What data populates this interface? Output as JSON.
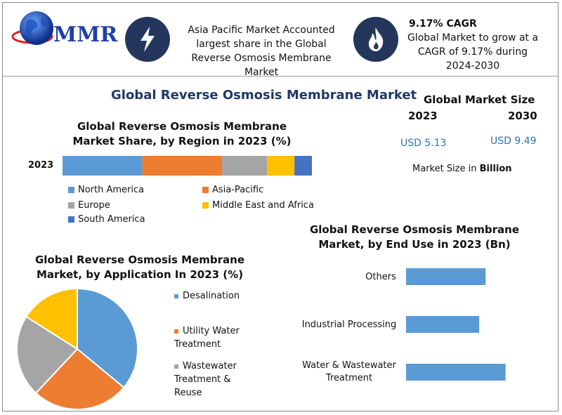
{
  "logo": {
    "text": "MMR"
  },
  "header": {
    "left_text": "Asia Pacific Market Accounted largest share in the Global Reverse Osmosis Membrane Market",
    "right_title": "9.17% CAGR",
    "right_text": "Global Market to grow at a CAGR of 9.17% during 2024-2030",
    "icons": [
      "lightning-icon",
      "flame-icon"
    ]
  },
  "main_title": "Global Reverse Osmosis Membrane Market",
  "market_size": {
    "title": "Global Market Size",
    "year1": "2023",
    "year2": "2030",
    "value1": "USD 5.13",
    "value2": "USD 9.49",
    "unit_prefix": "Market Size in ",
    "unit_bold": "Billion"
  },
  "colors": {
    "north_america": "#5b9bd5",
    "asia_pacific": "#ed7d31",
    "europe": "#a5a5a5",
    "middle_east_africa": "#ffc000",
    "south_america": "#4472c4",
    "navy": "#25365c"
  },
  "chart_data": [
    {
      "type": "bar",
      "orientation": "horizontal-stacked",
      "title": "Global Reverse Osmosis Membrane Market Share, by Region in 2023 (%)",
      "categories": [
        "2023"
      ],
      "series": [
        {
          "name": "North America",
          "values": [
            32
          ]
        },
        {
          "name": "Asia-Pacific",
          "values": [
            32
          ]
        },
        {
          "name": "Europe",
          "values": [
            18
          ]
        },
        {
          "name": "Middle East and Africa",
          "values": [
            11
          ]
        },
        {
          "name": "South America",
          "values": [
            7
          ]
        }
      ],
      "legend": "bottom"
    },
    {
      "type": "pie",
      "title": "Global Reverse Osmosis Membrane Market, by Application In 2023 (%)",
      "labels": [
        "Desalination",
        "Utility Water Treatment",
        "Wastewater Treatment & Reuse",
        ""
      ],
      "values": [
        36,
        26,
        22,
        16
      ],
      "legend": "right"
    },
    {
      "type": "bar",
      "orientation": "horizontal",
      "title": "Global Reverse Osmosis Membrane Market, by End Use in 2023 (Bn)",
      "categories": [
        "Others",
        "Industrial Processing",
        "Water & Wastewater Treatment"
      ],
      "values": [
        1.6,
        1.47,
        2.0
      ],
      "xlim": [
        0,
        2.4
      ]
    }
  ]
}
